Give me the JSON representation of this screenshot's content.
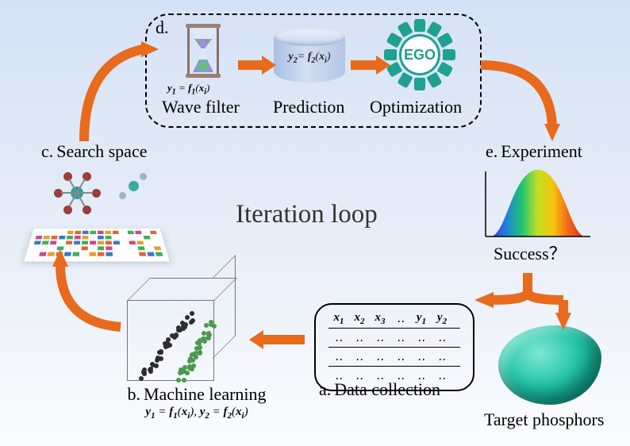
{
  "title": "Iteration loop",
  "nodes": {
    "a": {
      "tag": "a.",
      "label": "Data collection",
      "columns": [
        "x₁",
        "x₂",
        "x₃",
        "‥",
        "y₁",
        "y₂"
      ],
      "row_filler": "‥"
    },
    "b": {
      "tag": "b.",
      "label": "Machine learning",
      "eq": "y₁ = f₁(xᵢ), y₂ = f₂(xᵢ)",
      "cluster1_color": "#2d2d2d",
      "cluster2_color": "#4a9a4a",
      "cube_edge": "#777777"
    },
    "c": {
      "tag": "c.",
      "label": "Search space",
      "mol1_center": "#2aa098",
      "mol1_outer": "#9e3b3b",
      "mol2_center": "#3aa99f"
    },
    "d": {
      "tag": "d.",
      "wave": {
        "label": "Wave filter",
        "eq": "y₁ = f₁(xᵢ)"
      },
      "pred": {
        "label": "Prediction",
        "eq": "y₂ = f₂(xᵢ)"
      },
      "opt": {
        "label": "Optimization",
        "gear_text": "EGO",
        "gear_color": "#1fa090"
      }
    },
    "e": {
      "tag": "e.",
      "label": "Experiment",
      "success": "Success？",
      "spectrum_colors": [
        "#4a2fd6",
        "#1d7fe0",
        "#1fc471",
        "#c5e022",
        "#f6c40e",
        "#f1661a",
        "#e02217"
      ]
    },
    "target": {
      "label": "Target phosphors"
    }
  },
  "colors": {
    "arrow": "#e86a1c",
    "bg_top": "#d5e2f5",
    "bg_bot": "#fbfcfe"
  }
}
